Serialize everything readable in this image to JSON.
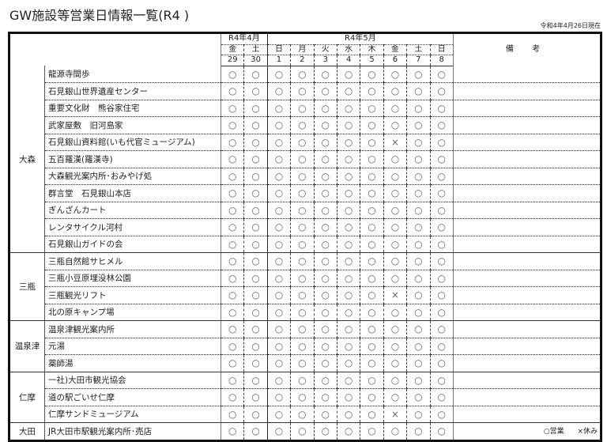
{
  "title": "GW施設等営業日情報一覧(R4 )",
  "as_of": "令和4年4月26日現在",
  "header": {
    "months": [
      {
        "label": "R4年4月",
        "span": 2
      },
      {
        "label": "R4年5月",
        "span": 8
      }
    ],
    "weekdays": [
      "金",
      "土",
      "日",
      "月",
      "火",
      "水",
      "木",
      "金",
      "土",
      "日"
    ],
    "days": [
      "29",
      "30",
      "1",
      "2",
      "3",
      "4",
      "5",
      "6",
      "7",
      "8"
    ],
    "remarks": "備 考"
  },
  "groups": [
    {
      "area": "大森",
      "facilities": [
        {
          "name": "龍源寺間歩",
          "marks": [
            "○",
            "○",
            "○",
            "○",
            "○",
            "○",
            "○",
            "○",
            "○",
            "○"
          ]
        },
        {
          "name": "石見銀山世界遺産センター",
          "marks": [
            "○",
            "○",
            "○",
            "○",
            "○",
            "○",
            "○",
            "○",
            "○",
            "○"
          ]
        },
        {
          "name": "重要文化財　熊谷家住宅",
          "marks": [
            "○",
            "○",
            "○",
            "○",
            "○",
            "○",
            "○",
            "○",
            "○",
            "○"
          ]
        },
        {
          "name": "武家屋敷　旧河島家",
          "marks": [
            "○",
            "○",
            "○",
            "○",
            "○",
            "○",
            "○",
            "○",
            "○",
            "○"
          ]
        },
        {
          "name": "石見銀山資料館(いも代官ミュージアム)",
          "marks": [
            "○",
            "○",
            "○",
            "○",
            "○",
            "○",
            "○",
            "×",
            "○",
            "○"
          ]
        },
        {
          "name": "五百羅漢(羅漢寺)",
          "marks": [
            "○",
            "○",
            "○",
            "○",
            "○",
            "○",
            "○",
            "○",
            "○",
            "○"
          ]
        },
        {
          "name": "大森観光案内所･おみやげ処",
          "marks": [
            "○",
            "○",
            "○",
            "○",
            "○",
            "○",
            "○",
            "○",
            "○",
            "○"
          ]
        },
        {
          "name": "群言堂　石見銀山本店",
          "marks": [
            "○",
            "○",
            "○",
            "○",
            "○",
            "○",
            "○",
            "○",
            "○",
            "○"
          ]
        },
        {
          "name": "ぎんざんカート",
          "marks": [
            "○",
            "○",
            "○",
            "○",
            "○",
            "○",
            "○",
            "○",
            "○",
            "○"
          ]
        },
        {
          "name": "レンタサイクル河村",
          "marks": [
            "○",
            "○",
            "○",
            "○",
            "○",
            "○",
            "○",
            "○",
            "○",
            "○"
          ]
        },
        {
          "name": "石見銀山ガイドの会",
          "marks": [
            "○",
            "○",
            "○",
            "○",
            "○",
            "○",
            "○",
            "○",
            "○",
            "○"
          ]
        }
      ]
    },
    {
      "area": "三瓶",
      "facilities": [
        {
          "name": "三瓶自然館サヒメル",
          "marks": [
            "○",
            "○",
            "○",
            "○",
            "○",
            "○",
            "○",
            "○",
            "○",
            "○"
          ]
        },
        {
          "name": "三瓶小豆原埋没林公園",
          "marks": [
            "○",
            "○",
            "○",
            "○",
            "○",
            "○",
            "○",
            "○",
            "○",
            "○"
          ]
        },
        {
          "name": "三瓶観光リフト",
          "marks": [
            "○",
            "○",
            "○",
            "○",
            "○",
            "○",
            "○",
            "×",
            "○",
            "○"
          ]
        },
        {
          "name": "北の原キャンプ場",
          "marks": [
            "○",
            "○",
            "○",
            "○",
            "○",
            "○",
            "○",
            "○",
            "○",
            "○"
          ]
        }
      ]
    },
    {
      "area": "温泉津",
      "facilities": [
        {
          "name": "温泉津観光案内所",
          "marks": [
            "○",
            "○",
            "○",
            "○",
            "○",
            "○",
            "○",
            "○",
            "○",
            "○"
          ]
        },
        {
          "name": "元湯",
          "marks": [
            "○",
            "○",
            "○",
            "○",
            "○",
            "○",
            "○",
            "○",
            "○",
            "○"
          ]
        },
        {
          "name": "薬師湯",
          "marks": [
            "○",
            "○",
            "○",
            "○",
            "○",
            "○",
            "○",
            "○",
            "○",
            "○"
          ]
        }
      ]
    },
    {
      "area": "仁摩",
      "facilities": [
        {
          "name": "一社)大田市観光協会",
          "marks": [
            "○",
            "○",
            "○",
            "○",
            "○",
            "○",
            "○",
            "○",
            "○",
            "○"
          ]
        },
        {
          "name": "道の駅ごいせ仁摩",
          "marks": [
            "○",
            "○",
            "○",
            "○",
            "○",
            "○",
            "○",
            "○",
            "○",
            "○"
          ]
        },
        {
          "name": "仁摩サンドミュージアム",
          "marks": [
            "○",
            "○",
            "○",
            "○",
            "○",
            "○",
            "○",
            "×",
            "○",
            "○"
          ]
        }
      ]
    },
    {
      "area": "大田",
      "facilities": [
        {
          "name": "JR大田市駅観光案内所･売店",
          "marks": [
            "○",
            "○",
            "○",
            "○",
            "○",
            "○",
            "○",
            "○",
            "○",
            "○"
          ]
        }
      ]
    }
  ],
  "legend": {
    "open": "○営業",
    "closed": "×休み"
  }
}
